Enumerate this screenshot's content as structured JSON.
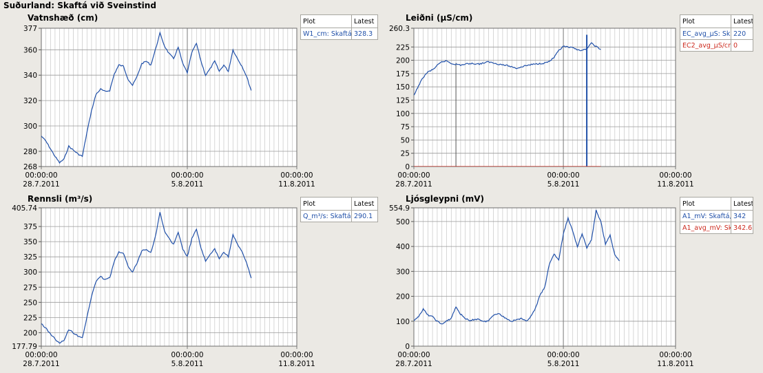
{
  "window": {
    "title": "Suðurland: Skaftá við Sveinstind"
  },
  "legend_headers": {
    "plot": "Plot",
    "latest": "Latest"
  },
  "colors": {
    "series_blue": "#1f4fa8",
    "series_red": "#cc2a1e",
    "grid": "#c6c6c6",
    "grid_major": "#7a7a7a"
  },
  "x_ticks": [
    {
      "time": "00:00:00",
      "date": "28.7.2011"
    },
    {
      "time": "00:00:00",
      "date": "5.8.2011"
    },
    {
      "time": "00:00:00",
      "date": "11.8.2011"
    }
  ],
  "chart_data": [
    {
      "type": "line",
      "title": "Vatnshæð (cm)",
      "ylim": [
        268,
        377
      ],
      "yticks": [
        "377",
        "360",
        "340",
        "320",
        "300",
        "280",
        "268"
      ],
      "xlim": [
        "2011-07-28",
        "2011-08-11"
      ],
      "xticks": [
        "2011-07-28",
        "2011-08-05",
        "2011-08-11"
      ],
      "grid": true,
      "legend_position": "right",
      "series": [
        {
          "name": "W1_cm: Skaftá",
          "latest": "328.3",
          "color": "#1f4fa8",
          "points": [
            [
              "2011-07-28",
              292
            ],
            [
              "2011-07-28T06:00",
              288
            ],
            [
              "2011-07-28T12:00",
              282
            ],
            [
              "2011-07-28T18:00",
              276
            ],
            [
              "2011-07-29",
              271
            ],
            [
              "2011-07-29T06:00",
              274
            ],
            [
              "2011-07-29T12:00",
              284
            ],
            [
              "2011-07-29T18:00",
              281
            ],
            [
              "2011-07-30",
              278
            ],
            [
              "2011-07-30T06:00",
              276
            ],
            [
              "2011-07-30T12:00",
              295
            ],
            [
              "2011-07-30T18:00",
              312
            ],
            [
              "2011-07-31",
              325
            ],
            [
              "2011-07-31T06:00",
              329
            ],
            [
              "2011-07-31T12:00",
              327
            ],
            [
              "2011-07-31T18:00",
              328
            ],
            [
              "2011-08-01",
              341
            ],
            [
              "2011-08-01T06:00",
              348
            ],
            [
              "2011-08-01T12:00",
              347
            ],
            [
              "2011-08-01T18:00",
              337
            ],
            [
              "2011-08-02",
              332
            ],
            [
              "2011-08-02T06:00",
              339
            ],
            [
              "2011-08-02T12:00",
              349
            ],
            [
              "2011-08-02T18:00",
              351
            ],
            [
              "2011-08-03",
              348
            ],
            [
              "2011-08-03T06:00",
              360
            ],
            [
              "2011-08-03T12:00",
              373
            ],
            [
              "2011-08-03T18:00",
              363
            ],
            [
              "2011-08-04",
              357
            ],
            [
              "2011-08-04T06:00",
              353
            ],
            [
              "2011-08-04T12:00",
              362
            ],
            [
              "2011-08-04T18:00",
              349
            ],
            [
              "2011-08-05",
              342
            ],
            [
              "2011-08-05T06:00",
              358
            ],
            [
              "2011-08-05T12:00",
              365
            ],
            [
              "2011-08-05T18:00",
              351
            ],
            [
              "2011-08-06",
              340
            ],
            [
              "2011-08-06T06:00",
              345
            ],
            [
              "2011-08-06T12:00",
              351
            ],
            [
              "2011-08-06T18:00",
              343
            ],
            [
              "2011-08-07",
              348
            ],
            [
              "2011-08-07T06:00",
              343
            ],
            [
              "2011-08-07T12:00",
              360
            ],
            [
              "2011-08-07T18:00",
              353
            ],
            [
              "2011-08-08",
              347
            ],
            [
              "2011-08-08T06:00",
              339
            ],
            [
              "2011-08-08T12:00",
              328
            ]
          ]
        }
      ]
    },
    {
      "type": "line",
      "title": "Leiðni (µS/cm)",
      "ylim": [
        0,
        260.3
      ],
      "yticks": [
        "260.3",
        "225",
        "200",
        "175",
        "150",
        "125",
        "100",
        "75",
        "50",
        "25",
        "0"
      ],
      "xlim": [
        "2011-07-28",
        "2011-08-11"
      ],
      "xticks": [
        "2011-07-28",
        "2011-08-05",
        "2011-08-11"
      ],
      "grid": true,
      "legend_position": "right",
      "series": [
        {
          "name": "EC_avg_µS: Sk",
          "latest": "220",
          "color": "#1f4fa8",
          "points": [
            [
              "2011-07-28",
              133
            ],
            [
              "2011-07-28T06:00",
              152
            ],
            [
              "2011-07-28T12:00",
              168
            ],
            [
              "2011-07-28T18:00",
              178
            ],
            [
              "2011-07-29",
              182
            ],
            [
              "2011-07-29T06:00",
              190
            ],
            [
              "2011-07-29T12:00",
              197
            ],
            [
              "2011-07-29T18:00",
              199
            ],
            [
              "2011-07-30",
              194
            ],
            [
              "2011-07-30T12:00",
              191
            ],
            [
              "2011-07-31",
              194
            ],
            [
              "2011-07-31T12:00",
              193
            ],
            [
              "2011-08-01",
              197
            ],
            [
              "2011-08-01T12:00",
              193
            ],
            [
              "2011-08-02",
              190
            ],
            [
              "2011-08-02T12:00",
              185
            ],
            [
              "2011-08-03",
              190
            ],
            [
              "2011-08-03T12:00",
              193
            ],
            [
              "2011-08-04",
              195
            ],
            [
              "2011-08-04T06:00",
              198
            ],
            [
              "2011-08-04T12:00",
              205
            ],
            [
              "2011-08-04T18:00",
              218
            ],
            [
              "2011-08-05",
              226
            ],
            [
              "2011-08-05T12:00",
              223
            ],
            [
              "2011-08-06",
              218
            ],
            [
              "2011-08-06T06:00",
              222
            ],
            [
              "2011-08-06T12:00",
              232
            ],
            [
              "2011-08-06T18:00",
              226
            ],
            [
              "2011-08-07",
              220
            ]
          ]
        },
        {
          "name": "EC2_avg_µS/cr",
          "latest": "0",
          "color": "#cc2a1e",
          "points": [
            [
              "2011-07-28",
              0
            ],
            [
              "2011-08-07",
              0
            ]
          ]
        }
      ],
      "spikes": [
        {
          "x": "2011-07-30T06:00",
          "y": 195,
          "color": "#555555"
        },
        {
          "x": "2011-08-06T06:00",
          "y": 248,
          "color": "#1f4fa8"
        }
      ]
    },
    {
      "type": "line",
      "title": "Rennsli (m³/s)",
      "ylim": [
        177.79,
        405.74
      ],
      "yticks": [
        "405.74",
        "375",
        "350",
        "325",
        "300",
        "275",
        "250",
        "225",
        "200",
        "177.79"
      ],
      "xlim": [
        "2011-07-28",
        "2011-08-11"
      ],
      "xticks": [
        "2011-07-28",
        "2011-08-05",
        "2011-08-11"
      ],
      "grid": true,
      "legend_position": "right",
      "series": [
        {
          "name": "Q_m³/s: Skaftá",
          "latest": "290.1",
          "color": "#1f4fa8",
          "points": [
            [
              "2011-07-28",
              215
            ],
            [
              "2011-07-28T06:00",
              207
            ],
            [
              "2011-07-28T12:00",
              198
            ],
            [
              "2011-07-28T18:00",
              190
            ],
            [
              "2011-07-29",
              182
            ],
            [
              "2011-07-29T06:00",
              188
            ],
            [
              "2011-07-29T12:00",
              205
            ],
            [
              "2011-07-29T18:00",
              200
            ],
            [
              "2011-07-30",
              195
            ],
            [
              "2011-07-30T06:00",
              192
            ],
            [
              "2011-07-30T12:00",
              225
            ],
            [
              "2011-07-30T18:00",
              260
            ],
            [
              "2011-07-31",
              285
            ],
            [
              "2011-07-31T06:00",
              292
            ],
            [
              "2011-07-31T12:00",
              288
            ],
            [
              "2011-07-31T18:00",
              290
            ],
            [
              "2011-08-01",
              318
            ],
            [
              "2011-08-01T06:00",
              333
            ],
            [
              "2011-08-01T12:00",
              330
            ],
            [
              "2011-08-01T18:00",
              310
            ],
            [
              "2011-08-02",
              300
            ],
            [
              "2011-08-02T06:00",
              315
            ],
            [
              "2011-08-02T12:00",
              335
            ],
            [
              "2011-08-02T18:00",
              338
            ],
            [
              "2011-08-03",
              332
            ],
            [
              "2011-08-03T06:00",
              358
            ],
            [
              "2011-08-03T12:00",
              398
            ],
            [
              "2011-08-03T18:00",
              368
            ],
            [
              "2011-08-04",
              355
            ],
            [
              "2011-08-04T06:00",
              345
            ],
            [
              "2011-08-04T12:00",
              365
            ],
            [
              "2011-08-04T18:00",
              338
            ],
            [
              "2011-08-05",
              325
            ],
            [
              "2011-08-05T06:00",
              355
            ],
            [
              "2011-08-05T12:00",
              370
            ],
            [
              "2011-08-05T18:00",
              340
            ],
            [
              "2011-08-06",
              318
            ],
            [
              "2011-08-06T06:00",
              328
            ],
            [
              "2011-08-06T12:00",
              338
            ],
            [
              "2011-08-06T18:00",
              322
            ],
            [
              "2011-08-07",
              333
            ],
            [
              "2011-08-07T06:00",
              325
            ],
            [
              "2011-08-07T12:00",
              362
            ],
            [
              "2011-08-07T18:00",
              345
            ],
            [
              "2011-08-08",
              333
            ],
            [
              "2011-08-08T06:00",
              315
            ],
            [
              "2011-08-08T12:00",
              290
            ]
          ]
        }
      ]
    },
    {
      "type": "line",
      "title": "Ljósgleypni (mV)",
      "ylim": [
        0,
        554.9
      ],
      "yticks": [
        "554.9",
        "500",
        "400",
        "300",
        "200",
        "100",
        "0"
      ],
      "xlim": [
        "2011-07-28",
        "2011-08-11"
      ],
      "xticks": [
        "2011-07-28",
        "2011-08-05",
        "2011-08-11"
      ],
      "grid": true,
      "legend_position": "right",
      "series": [
        {
          "name": "A1_mV: Skaftá,",
          "latest": "342",
          "color": "#1f4fa8",
          "points": [
            [
              "2011-07-28",
              100
            ],
            [
              "2011-07-28T06:00",
              120
            ],
            [
              "2011-07-28T12:00",
              148
            ],
            [
              "2011-07-28T18:00",
              125
            ],
            [
              "2011-07-29",
              118
            ],
            [
              "2011-07-29T06:00",
              100
            ],
            [
              "2011-07-29T12:00",
              88
            ],
            [
              "2011-07-29T18:00",
              100
            ],
            [
              "2011-07-30",
              112
            ],
            [
              "2011-07-30T06:00",
              158
            ],
            [
              "2011-07-30T12:00",
              128
            ],
            [
              "2011-07-30T18:00",
              112
            ],
            [
              "2011-07-31",
              100
            ],
            [
              "2011-07-31T06:00",
              108
            ],
            [
              "2011-07-31T12:00",
              108
            ],
            [
              "2011-07-31T18:00",
              98
            ],
            [
              "2011-08-01",
              102
            ],
            [
              "2011-08-01T06:00",
              125
            ],
            [
              "2011-08-01T12:00",
              132
            ],
            [
              "2011-08-01T18:00",
              120
            ],
            [
              "2011-08-02",
              108
            ],
            [
              "2011-08-02T06:00",
              100
            ],
            [
              "2011-08-02T12:00",
              108
            ],
            [
              "2011-08-02T18:00",
              110
            ],
            [
              "2011-08-03",
              100
            ],
            [
              "2011-08-03T06:00",
              118
            ],
            [
              "2011-08-03T12:00",
              150
            ],
            [
              "2011-08-03T18:00",
              205
            ],
            [
              "2011-08-04",
              235
            ],
            [
              "2011-08-04T06:00",
              330
            ],
            [
              "2011-08-04T12:00",
              370
            ],
            [
              "2011-08-04T18:00",
              345
            ],
            [
              "2011-08-05",
              450
            ],
            [
              "2011-08-05T06:00",
              515
            ],
            [
              "2011-08-05T12:00",
              460
            ],
            [
              "2011-08-05T18:00",
              400
            ],
            [
              "2011-08-06",
              450
            ],
            [
              "2011-08-06T06:00",
              395
            ],
            [
              "2011-08-06T12:00",
              425
            ],
            [
              "2011-08-06T18:00",
              545
            ],
            [
              "2011-08-07",
              500
            ],
            [
              "2011-08-07T06:00",
              410
            ],
            [
              "2011-08-07T12:00",
              445
            ],
            [
              "2011-08-07T18:00",
              365
            ],
            [
              "2011-08-08",
              342
            ]
          ]
        },
        {
          "name": "A1_avg_mV: Sk",
          "latest": "342.6",
          "color": "#cc2a1e",
          "points": []
        }
      ]
    }
  ]
}
